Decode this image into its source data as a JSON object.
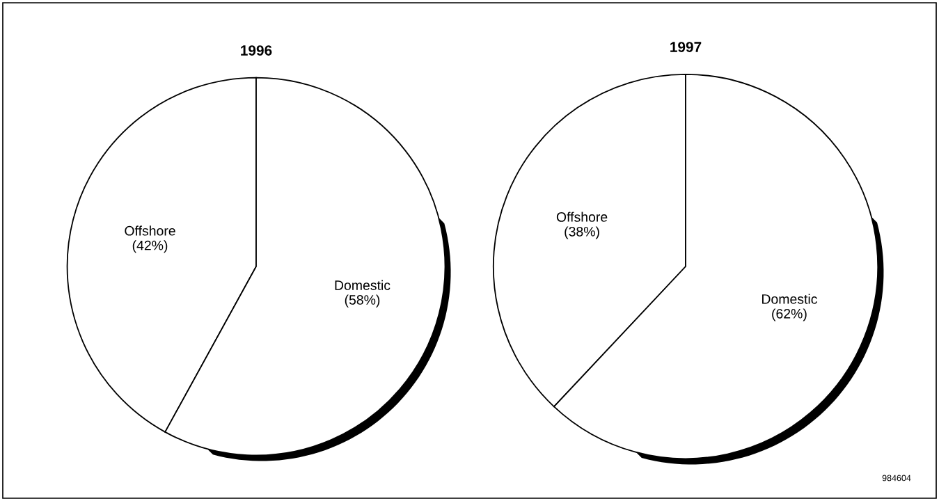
{
  "chart_data": [
    {
      "type": "pie",
      "title": "1996",
      "categories": [
        "Offshore",
        "Domestic"
      ],
      "values": [
        42,
        58
      ],
      "colors": [
        "#ffffff",
        "#ffffff"
      ],
      "value_labels": [
        "(42%)",
        "(58%)"
      ]
    },
    {
      "type": "pie",
      "title": "1997",
      "categories": [
        "Offshore",
        "Domestic"
      ],
      "values": [
        38,
        62
      ],
      "colors": [
        "#ffffff",
        "#ffffff"
      ],
      "value_labels": [
        "(38%)",
        "(62%)"
      ],
      "annotations": [
        "984604"
      ]
    }
  ]
}
